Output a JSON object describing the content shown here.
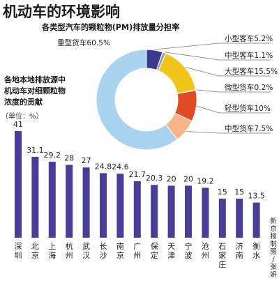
{
  "title": "机动车的环境影响",
  "credit": "新京报制图/张妍",
  "colors": {
    "bar": "#4a3d9a",
    "donut": {
      "small_bus": "#3b3a8f",
      "medium_bus": "#9aa4b0",
      "large_bus": "#f0c419",
      "mini_truck": "#c0392b",
      "light_truck": "#e04a24",
      "medium_truck": "#f5b48a",
      "heavy_truck": "#a9d3ee"
    }
  },
  "chart_data": [
    {
      "type": "pie",
      "style": "donut",
      "title": "各类型汽车的颗粒物(PM)排放量分担率",
      "slices": [
        {
          "key": "small_bus",
          "label": "小型客车",
          "value": 5.2,
          "text": "5.2%"
        },
        {
          "key": "medium_bus",
          "label": "中型客车",
          "value": 1.1,
          "text": "1.1%"
        },
        {
          "key": "large_bus",
          "label": "大型客车",
          "value": 15.5,
          "text": "15.5%"
        },
        {
          "key": "mini_truck",
          "label": "微型货车",
          "value": 0.2,
          "text": "0.2%"
        },
        {
          "key": "light_truck",
          "label": "轻型货车",
          "value": 10,
          "text": "10%"
        },
        {
          "key": "medium_truck",
          "label": "中型货车",
          "value": 7.5,
          "text": "7.5%"
        },
        {
          "key": "heavy_truck",
          "label": "重型货车",
          "value": 60.5,
          "text": "60.5%"
        }
      ]
    },
    {
      "type": "bar",
      "title": [
        "各地本地排放源中",
        "机动车对细颗粒物",
        "浓度的贡献"
      ],
      "unit": "（单位：%）",
      "categories": [
        "深圳",
        "北京",
        "上海",
        "杭州",
        "武汉",
        "长沙",
        "南京",
        "广州",
        "保定",
        "天津",
        "宁波",
        "沧州",
        "石家庄",
        "济南",
        "衡水"
      ],
      "values": [
        41,
        31.1,
        29.2,
        28,
        27,
        24.8,
        24.6,
        21.7,
        20.3,
        20,
        20,
        19.2,
        15,
        15,
        13.5
      ],
      "labels": [
        "41",
        "31.1",
        "29.2",
        "28",
        "27",
        "24.8",
        "24.6",
        "21.7",
        "20.3",
        "20",
        "20",
        "19.2",
        "15",
        "15",
        "13.5"
      ],
      "ylim": [
        0,
        41
      ]
    }
  ]
}
